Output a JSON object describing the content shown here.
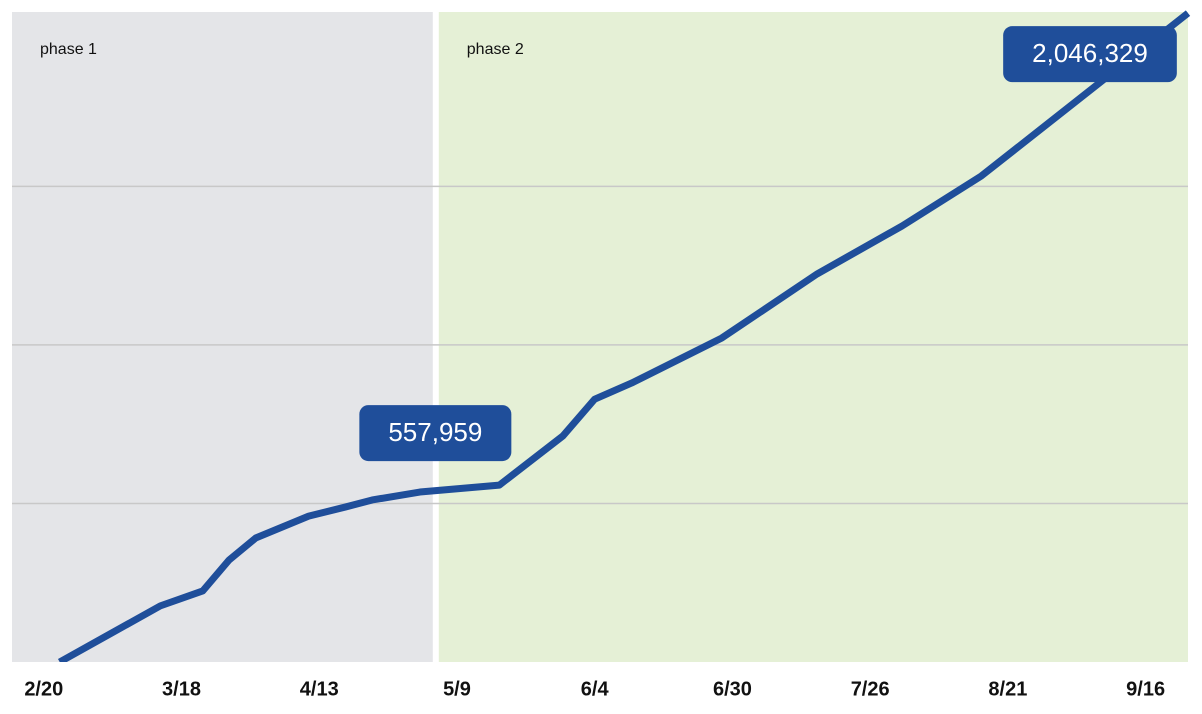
{
  "chart_data": {
    "type": "line",
    "color": "#1f4e9a",
    "x": [
      54,
      73,
      81,
      86,
      91,
      101,
      108,
      113,
      122,
      137,
      149,
      155,
      162,
      179,
      197,
      213,
      228,
      267
    ],
    "values": [
      0,
      177000,
      224000,
      322000,
      391000,
      460000,
      489000,
      511000,
      536000,
      557959,
      713000,
      829000,
      880000,
      1022000,
      1224000,
      1375000,
      1533000,
      2046329
    ],
    "xlim": [
      45,
      267
    ],
    "xticks": [
      {
        "value": 51,
        "label": "2/20"
      },
      {
        "value": 77,
        "label": "3/18"
      },
      {
        "value": 103,
        "label": "4/13"
      },
      {
        "value": 129,
        "label": "5/9"
      },
      {
        "value": 155,
        "label": "6/4"
      },
      {
        "value": 181,
        "label": "6/30"
      },
      {
        "value": 207,
        "label": "7/26"
      },
      {
        "value": 233,
        "label": "8/21"
      },
      {
        "value": 259,
        "label": "9/16"
      }
    ],
    "ylim": [
      0,
      2050000
    ],
    "yticks": [
      500000,
      1000000,
      1500000
    ],
    "grid": true,
    "phases": [
      {
        "label": "phase 1",
        "start": 45,
        "end": 125,
        "color": "#e4e5e8"
      },
      {
        "label": "phase 2",
        "start": 125,
        "end": 267,
        "color": "#e5f0d6"
      }
    ],
    "annotations": [
      {
        "label": "557,959",
        "x": 137,
        "value": 557959
      },
      {
        "label": "2,046,329",
        "x": 267,
        "value": 2046329
      }
    ]
  }
}
